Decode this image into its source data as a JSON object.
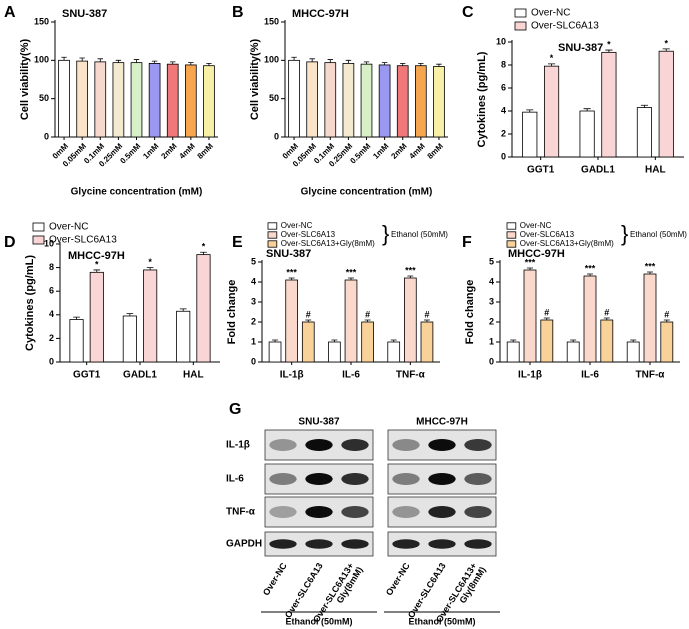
{
  "chart_data": [
    {
      "type": "bar",
      "label": "A",
      "title": "SNU-387",
      "ylabel": "Cell viability(%)",
      "xlabel": "Glycine concentration (mM)",
      "categories": [
        "0mM",
        "0.05mM",
        "0.1mM",
        "0.25mM",
        "0.5mM",
        "1mM",
        "2mM",
        "4mM",
        "8mM"
      ],
      "values": [
        100,
        99,
        98,
        97,
        97,
        96,
        95,
        94,
        93
      ],
      "errors": [
        4,
        4,
        4,
        3,
        4,
        3,
        3,
        3,
        3
      ],
      "colors": [
        "#ffffff",
        "#fbe3c8",
        "#f6d8cc",
        "#f4ead0",
        "#d8f0c8",
        "#9a98f0",
        "#f07878",
        "#f7a650",
        "#f9f0a8"
      ],
      "ylim": [
        0,
        150
      ],
      "yticks": [
        0,
        50,
        100,
        150
      ]
    },
    {
      "type": "bar",
      "label": "B",
      "title": "MHCC-97H",
      "ylabel": "Cell viability(%)",
      "xlabel": "Glycine concentration (mM)",
      "categories": [
        "0mM",
        "0.05mM",
        "0.1mM",
        "0.25mM",
        "0.5mM",
        "1mM",
        "2mM",
        "4mM",
        "8mM"
      ],
      "values": [
        100,
        98,
        97,
        96,
        95,
        94,
        93,
        93,
        92
      ],
      "errors": [
        4,
        4,
        4,
        4,
        3,
        3,
        3,
        3,
        3
      ],
      "colors": [
        "#ffffff",
        "#fbe3c8",
        "#f6d8cc",
        "#f4ead0",
        "#d8f0c8",
        "#9a98f0",
        "#f07878",
        "#f7a650",
        "#f9f0a8"
      ],
      "ylim": [
        0,
        150
      ],
      "yticks": [
        0,
        50,
        100,
        150
      ]
    },
    {
      "type": "bar",
      "label": "C",
      "title": "SNU-387",
      "ylabel": "Cytokines (pg/mL)",
      "categories": [
        "GGT1",
        "GADL1",
        "HAL"
      ],
      "series": [
        {
          "name": "Over-NC",
          "color": "#ffffff",
          "values": [
            3.9,
            4.0,
            4.3
          ],
          "errors": [
            0.2,
            0.2,
            0.2
          ]
        },
        {
          "name": "Over-SLC6A13",
          "color": "#f9d5d5",
          "values": [
            7.9,
            9.1,
            9.2
          ],
          "errors": [
            0.2,
            0.2,
            0.2
          ],
          "labels": [
            "*",
            "*",
            "*"
          ]
        }
      ],
      "ylim": [
        0,
        10
      ],
      "yticks": [
        0,
        2,
        4,
        6,
        8,
        10
      ]
    },
    {
      "type": "bar",
      "label": "D",
      "title": "MHCC-97H",
      "ylabel": "Cytokines (pg/mL)",
      "categories": [
        "GGT1",
        "GADL1",
        "HAL"
      ],
      "series": [
        {
          "name": "Over-NC",
          "color": "#ffffff",
          "values": [
            3.6,
            3.9,
            4.3
          ],
          "errors": [
            0.2,
            0.2,
            0.2
          ]
        },
        {
          "name": "Over-SLC6A13",
          "color": "#f9d5d5",
          "values": [
            7.6,
            7.8,
            9.1
          ],
          "errors": [
            0.2,
            0.2,
            0.2
          ],
          "labels": [
            "*",
            "*",
            "*"
          ]
        }
      ],
      "ylim": [
        0,
        10
      ],
      "yticks": [
        0,
        2,
        4,
        6,
        8,
        10
      ]
    },
    {
      "type": "bar",
      "label": "E",
      "title": "SNU-387",
      "ylabel": "Fold change",
      "bracket_label": "Ethanol (50mM)",
      "categories": [
        "IL-1β",
        "IL-6",
        "TNF-α"
      ],
      "series": [
        {
          "name": "Over-NC",
          "color": "#ffffff",
          "values": [
            1,
            1,
            1
          ],
          "errors": [
            0.1,
            0.1,
            0.1
          ]
        },
        {
          "name": "Over-SLC6A13",
          "color": "#fbd8cc",
          "values": [
            4.1,
            4.1,
            4.2
          ],
          "errors": [
            0.1,
            0.1,
            0.1
          ],
          "labels": [
            "***",
            "***",
            "***"
          ]
        },
        {
          "name": "Over-SLC6A13+Gly(8mM)",
          "color": "#f9d29a",
          "values": [
            2.0,
            2.0,
            2.0
          ],
          "errors": [
            0.1,
            0.1,
            0.1
          ],
          "labels": [
            "#",
            "#",
            "#"
          ]
        }
      ],
      "ylim": [
        0,
        5
      ],
      "yticks": [
        0,
        1,
        2,
        3,
        4,
        5
      ]
    },
    {
      "type": "bar",
      "label": "F",
      "title": "MHCC-97H",
      "ylabel": "Fold change",
      "bracket_label": "Ethanol (50mM)",
      "categories": [
        "IL-1β",
        "IL-6",
        "TNF-α"
      ],
      "series": [
        {
          "name": "Over-NC",
          "color": "#ffffff",
          "values": [
            1,
            1,
            1
          ],
          "errors": [
            0.1,
            0.1,
            0.1
          ]
        },
        {
          "name": "Over-SLC6A13",
          "color": "#fbd8cc",
          "values": [
            4.6,
            4.3,
            4.4
          ],
          "errors": [
            0.1,
            0.1,
            0.1
          ],
          "labels": [
            "***",
            "***",
            "***"
          ]
        },
        {
          "name": "Over-SLC6A13+Gly(8mM)",
          "color": "#f9d29a",
          "values": [
            2.1,
            2.1,
            2.0
          ],
          "errors": [
            0.1,
            0.1,
            0.1
          ],
          "labels": [
            "#",
            "#",
            "#"
          ]
        }
      ],
      "ylim": [
        0,
        5
      ],
      "yticks": [
        0,
        1,
        2,
        3,
        4,
        5
      ]
    }
  ],
  "blot": {
    "label": "G",
    "rows": [
      "IL-1β",
      "IL-6",
      "TNF-α",
      "GAPDH"
    ],
    "groups": [
      {
        "title": "SNU-387",
        "lanes": [
          [
            "Over-NC"
          ],
          [
            "Over-SLC6A13"
          ],
          [
            "Over-SLC6A13+",
            "Gly(8mM)"
          ]
        ],
        "footer": "Ethanol (50mM)",
        "bands": [
          [
            0.35,
            0.95,
            0.8
          ],
          [
            0.45,
            0.95,
            0.8
          ],
          [
            0.3,
            0.95,
            0.7
          ],
          [
            0.85,
            0.85,
            0.85
          ]
        ]
      },
      {
        "title": "MHCC-97H",
        "lanes": [
          [
            "Over-NC"
          ],
          [
            "Over-SLC6A13"
          ],
          [
            "Over-SLC6A13+",
            "Gly(8mM)"
          ]
        ],
        "footer": "Ethanol (50mM)",
        "bands": [
          [
            0.4,
            0.95,
            0.75
          ],
          [
            0.45,
            0.95,
            0.6
          ],
          [
            0.35,
            0.85,
            0.7
          ],
          [
            0.85,
            0.85,
            0.85
          ]
        ]
      }
    ]
  }
}
